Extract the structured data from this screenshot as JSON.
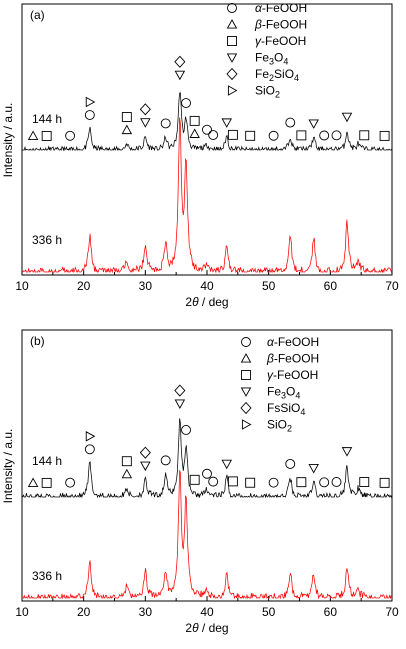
{
  "chart_data": [
    {
      "type": "line",
      "panel_label": "(a)",
      "xlabel_pre": "2",
      "xlabel_theta": "θ",
      "xlabel_post": " / deg",
      "ylabel": "Intensity / a.u.",
      "xlim": [
        10,
        70
      ],
      "x_ticks": [
        "10",
        "20",
        "30",
        "40",
        "50",
        "60",
        "70"
      ],
      "grid": false,
      "legend_placement": "top-right",
      "legend": [
        {
          "symbol": "circle",
          "pre": "α",
          "sub": "",
          "post": "-FeOOH"
        },
        {
          "symbol": "triangle",
          "pre": "β",
          "sub": "",
          "post": "-FeOOH"
        },
        {
          "symbol": "square",
          "pre": "γ",
          "sub": "",
          "post": "-FeOOH"
        },
        {
          "symbol": "tri-down",
          "pre": "",
          "text": "Fe",
          "sub": "3",
          "text2": "O",
          "sub2": "4"
        },
        {
          "symbol": "diamond",
          "pre": "",
          "text": "Fe",
          "sub": "2",
          "text2": "SiO",
          "sub2": "4"
        },
        {
          "symbol": "tri-right",
          "pre": "",
          "text": "SiO",
          "sub": "2",
          "text2": "",
          "sub2": ""
        }
      ],
      "series": [
        {
          "name": "144 h",
          "color": "#000000",
          "peaks": [
            [
              21.0,
              22
            ],
            [
              27.0,
              6
            ],
            [
              30.0,
              14
            ],
            [
              33.3,
              12
            ],
            [
              35.6,
              62
            ],
            [
              36.6,
              30
            ],
            [
              40.0,
              6
            ],
            [
              43.2,
              14
            ],
            [
              53.5,
              14
            ],
            [
              57.3,
              13
            ],
            [
              62.7,
              20
            ],
            [
              64.5,
              7
            ]
          ]
        },
        {
          "name": "336 h",
          "color": "#ff0000",
          "peaks": [
            [
              21.0,
              30
            ],
            [
              27.0,
              10
            ],
            [
              30.0,
              24
            ],
            [
              33.3,
              22
            ],
            [
              35.6,
              125
            ],
            [
              36.6,
              90
            ],
            [
              40.0,
              8
            ],
            [
              43.2,
              20
            ],
            [
              53.5,
              30
            ],
            [
              57.3,
              28
            ],
            [
              62.7,
              42
            ],
            [
              64.5,
              10
            ]
          ]
        }
      ],
      "markers": [
        {
          "symbol": "circle",
          "x": 17.8
        },
        {
          "symbol": "circle",
          "x": 21.0
        },
        {
          "symbol": "circle",
          "x": 33.3
        },
        {
          "symbol": "circle",
          "x": 36.6
        },
        {
          "symbol": "circle",
          "x": 40.0
        },
        {
          "symbol": "circle",
          "x": 41.0
        },
        {
          "symbol": "circle",
          "x": 50.8
        },
        {
          "symbol": "circle",
          "x": 53.5
        },
        {
          "symbol": "circle",
          "x": 59.0
        },
        {
          "symbol": "circle",
          "x": 61.0
        },
        {
          "symbol": "triangle",
          "x": 11.8
        },
        {
          "symbol": "triangle",
          "x": 27.0
        },
        {
          "symbol": "triangle",
          "x": 38.0
        },
        {
          "symbol": "square",
          "x": 14.0
        },
        {
          "symbol": "square",
          "x": 27.0
        },
        {
          "symbol": "square",
          "x": 38.0
        },
        {
          "symbol": "square",
          "x": 44.2
        },
        {
          "symbol": "square",
          "x": 47.0
        },
        {
          "symbol": "square",
          "x": 55.3
        },
        {
          "symbol": "square",
          "x": 65.5
        },
        {
          "symbol": "square",
          "x": 68.8
        },
        {
          "symbol": "tri-down",
          "x": 30.0
        },
        {
          "symbol": "tri-down",
          "x": 35.6
        },
        {
          "symbol": "tri-down",
          "x": 43.2
        },
        {
          "symbol": "tri-down",
          "x": 57.3
        },
        {
          "symbol": "tri-down",
          "x": 62.7
        },
        {
          "symbol": "diamond",
          "x": 30.0
        },
        {
          "symbol": "diamond",
          "x": 35.6
        },
        {
          "symbol": "tri-right",
          "x": 21.0
        }
      ]
    },
    {
      "type": "line",
      "panel_label": "(b)",
      "xlabel_pre": "2",
      "xlabel_theta": "θ",
      "xlabel_post": " / deg",
      "ylabel": "Intensity / a.u.",
      "xlim": [
        10,
        70
      ],
      "x_ticks": [
        "10",
        "20",
        "30",
        "40",
        "50",
        "60",
        "70"
      ],
      "grid": false,
      "legend_placement": "top-right",
      "legend": [
        {
          "symbol": "circle",
          "pre": "α",
          "sub": "",
          "post": "-FeOOH"
        },
        {
          "symbol": "triangle",
          "pre": "β",
          "sub": "",
          "post": "-FeOOH"
        },
        {
          "symbol": "square",
          "pre": "γ",
          "sub": "",
          "post": "-FeOOH"
        },
        {
          "symbol": "tri-down",
          "pre": "",
          "text": "Fe",
          "sub": "3",
          "text2": "O",
          "sub2": "4"
        },
        {
          "symbol": "diamond",
          "pre": "",
          "text": "FsSiO",
          "sub": "4",
          "text2": "",
          "sub2": ""
        },
        {
          "symbol": "tri-right",
          "pre": "",
          "text": "SiO",
          "sub": "2",
          "text2": "",
          "sub2": ""
        }
      ],
      "series": [
        {
          "name": "144 h",
          "color": "#000000",
          "peaks": [
            [
              21.0,
              32
            ],
            [
              27.0,
              8
            ],
            [
              30.0,
              16
            ],
            [
              33.3,
              20
            ],
            [
              35.6,
              72
            ],
            [
              36.6,
              45
            ],
            [
              40.0,
              8
            ],
            [
              43.2,
              18
            ],
            [
              53.5,
              18
            ],
            [
              57.3,
              14
            ],
            [
              62.7,
              30
            ],
            [
              64.5,
              8
            ]
          ]
        },
        {
          "name": "336 h",
          "color": "#ff0000",
          "peaks": [
            [
              21.0,
              30
            ],
            [
              27.0,
              10
            ],
            [
              30.0,
              24
            ],
            [
              33.3,
              22
            ],
            [
              35.6,
              105
            ],
            [
              36.6,
              80
            ],
            [
              40.0,
              8
            ],
            [
              43.2,
              18
            ],
            [
              53.5,
              22
            ],
            [
              57.3,
              20
            ],
            [
              62.7,
              28
            ],
            [
              64.5,
              8
            ]
          ]
        }
      ],
      "markers": [
        {
          "symbol": "circle",
          "x": 17.8
        },
        {
          "symbol": "circle",
          "x": 21.0
        },
        {
          "symbol": "circle",
          "x": 33.3
        },
        {
          "symbol": "circle",
          "x": 36.6
        },
        {
          "symbol": "circle",
          "x": 40.0
        },
        {
          "symbol": "circle",
          "x": 41.0
        },
        {
          "symbol": "circle",
          "x": 50.8
        },
        {
          "symbol": "circle",
          "x": 53.5
        },
        {
          "symbol": "circle",
          "x": 59.0
        },
        {
          "symbol": "circle",
          "x": 61.0
        },
        {
          "symbol": "triangle",
          "x": 11.8
        },
        {
          "symbol": "triangle",
          "x": 27.0
        },
        {
          "symbol": "square",
          "x": 14.0
        },
        {
          "symbol": "square",
          "x": 27.0
        },
        {
          "symbol": "square",
          "x": 38.0
        },
        {
          "symbol": "square",
          "x": 44.2
        },
        {
          "symbol": "square",
          "x": 47.0
        },
        {
          "symbol": "square",
          "x": 55.3
        },
        {
          "symbol": "square",
          "x": 65.5
        },
        {
          "symbol": "square",
          "x": 68.8
        },
        {
          "symbol": "tri-down",
          "x": 30.0
        },
        {
          "symbol": "tri-down",
          "x": 35.6
        },
        {
          "symbol": "tri-down",
          "x": 43.2
        },
        {
          "symbol": "tri-down",
          "x": 57.3
        },
        {
          "symbol": "tri-down",
          "x": 62.7
        },
        {
          "symbol": "diamond",
          "x": 30.0
        },
        {
          "symbol": "diamond",
          "x": 35.6
        },
        {
          "symbol": "tri-right",
          "x": 21.0
        }
      ]
    }
  ]
}
